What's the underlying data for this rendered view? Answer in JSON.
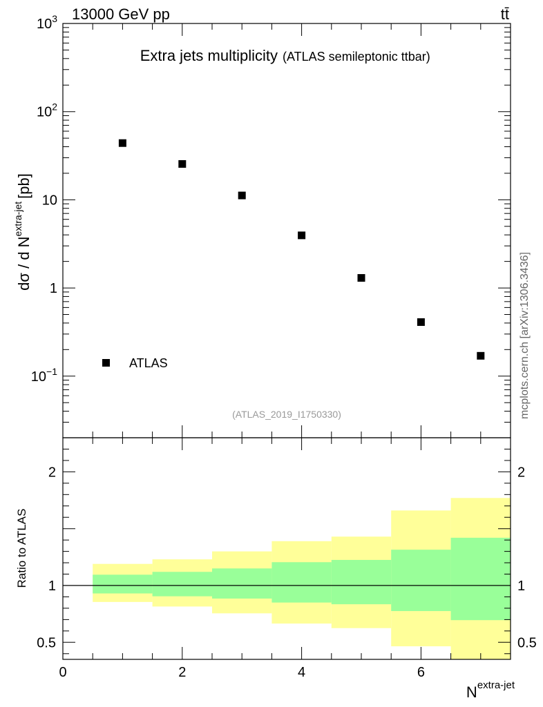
{
  "header": {
    "energy_label": "13000 GeV pp",
    "process_label": "tt̄"
  },
  "side_label": "mcplots.cern.ch [arXiv:1306.3436]",
  "chart_data": [
    {
      "type": "scatter",
      "panel": "main",
      "title": "Extra jets multiplicity",
      "subtitle": "(ATLAS semileptonic ttbar)",
      "analysis_tag": "(ATLAS_2019_I1750330)",
      "ylabel_main": "dσ / d N",
      "ylabel_sup": "extra-jet",
      "ylabel_unit": "[pb]",
      "yscale": "log",
      "ylim": [
        0.02,
        1000
      ],
      "xlim": [
        0,
        7.5
      ],
      "ytick_labels": [
        {
          "value": 1000,
          "base": "10",
          "exp": "3"
        },
        {
          "value": 100,
          "base": "10",
          "exp": "2"
        },
        {
          "value": 10,
          "base": "10",
          "exp": ""
        },
        {
          "value": 1,
          "base": "1",
          "exp": ""
        },
        {
          "value": 0.1,
          "base": "10",
          "exp": "−1"
        }
      ],
      "legend": {
        "label": "ATLAS",
        "position": "bottom-left"
      },
      "series": [
        {
          "name": "ATLAS",
          "x": [
            1,
            2,
            3,
            4,
            5,
            6,
            7
          ],
          "y": [
            44,
            25.5,
            11.2,
            3.95,
            1.3,
            0.41,
            0.17
          ]
        }
      ]
    },
    {
      "type": "area",
      "panel": "ratio",
      "ylabel": "Ratio to ATLAS",
      "ylim": [
        0.35,
        2.3
      ],
      "xlim": [
        0,
        7.5
      ],
      "xlabel_main": "N",
      "xlabel_sup": "extra-jet",
      "xtick_labels": [
        {
          "value": 0,
          "label": "0"
        },
        {
          "value": 2,
          "label": "2"
        },
        {
          "value": 4,
          "label": "4"
        },
        {
          "value": 6,
          "label": "6"
        }
      ],
      "ytick_labels": [
        {
          "value": 2,
          "label": "2"
        },
        {
          "value": 1,
          "label": "1"
        },
        {
          "value": 0.5,
          "label": "0.5"
        }
      ],
      "reference_line": 1,
      "bins": [
        [
          0.5,
          1.5
        ],
        [
          1.5,
          2.5
        ],
        [
          2.5,
          3.5
        ],
        [
          3.5,
          4.5
        ],
        [
          4.5,
          5.5
        ],
        [
          5.5,
          6.5
        ],
        [
          6.5,
          7.5
        ]
      ],
      "band_outer": {
        "color": "#ffff99",
        "low": [
          0.855,
          0.815,
          0.755,
          0.665,
          0.625,
          0.465,
          0.35
        ],
        "high": [
          1.19,
          1.23,
          1.3,
          1.39,
          1.43,
          1.66,
          1.77
        ]
      },
      "band_inner": {
        "color": "#99ff99",
        "low": [
          0.93,
          0.905,
          0.885,
          0.85,
          0.835,
          0.775,
          0.695
        ],
        "high": [
          1.095,
          1.12,
          1.15,
          1.205,
          1.225,
          1.315,
          1.42
        ]
      }
    }
  ]
}
